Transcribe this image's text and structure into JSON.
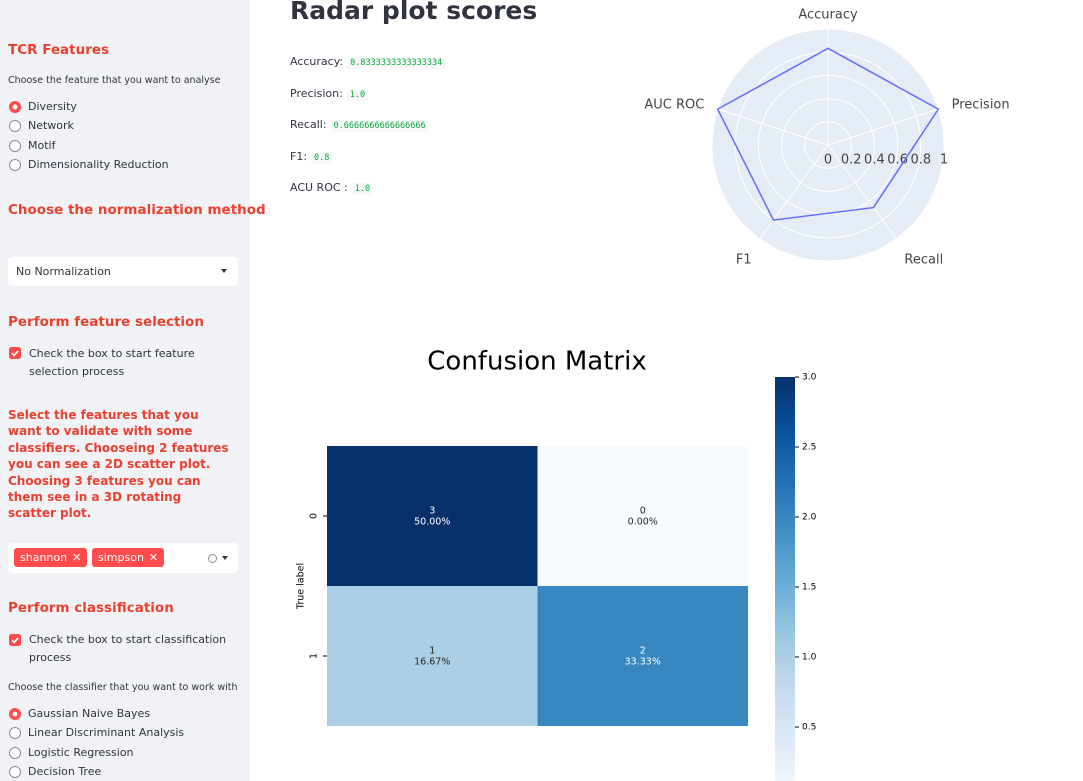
{
  "sidebar": {
    "tcr_title": "TCR Features",
    "feature_prompt": "Choose the feature that you want to analyse",
    "features": [
      "Diversity",
      "Network",
      "Motif",
      "Dimensionality Reduction"
    ],
    "selected_feature": 0,
    "normalization_title": "Choose the normalization method",
    "normalization_value": "No Normalization",
    "feature_selection_title": "Perform feature selection",
    "feature_selection_checkbox": "Check the box to start feature selection process",
    "feature_selection_checked": true,
    "select_features_text": "Select the features that you want to validate with some classifiers. Chooseing 2 features you can see a 2D scatter plot. Choosing 3 features you can them see in a 3D rotating scatter plot.",
    "selected_tags": [
      "shannon",
      "simpson"
    ],
    "classification_title": "Perform classification",
    "classification_checkbox": "Check the box to start classification process",
    "classification_checked": true,
    "classifier_prompt": "Choose the classifier that you want to work with",
    "classifiers": [
      "Gaussian Naive Bayes",
      "Linear Discriminant Analysis",
      "Logistic Regression",
      "Decision Tree"
    ],
    "selected_classifier": 0
  },
  "main": {
    "title": "Radar plot scores",
    "metrics": [
      {
        "label": "Accuracy:",
        "value": "0.8333333333333334"
      },
      {
        "label": "Precision:",
        "value": "1.0"
      },
      {
        "label": "Recall:",
        "value": "0.6666666666666666"
      },
      {
        "label": "F1:",
        "value": "0.8"
      },
      {
        "label": "ACU ROC :",
        "value": "1.0"
      }
    ]
  },
  "chart_data": [
    {
      "type": "radar",
      "categories": [
        "Accuracy",
        "Precision",
        "Recall",
        "F1",
        "AUC ROC"
      ],
      "values": [
        0.8333333333333334,
        1.0,
        0.6666666666666666,
        0.8,
        1.0
      ],
      "color": "#636efa",
      "rlim": [
        0,
        1
      ],
      "rticks": [
        0,
        0.2,
        0.4,
        0.6,
        0.8,
        1
      ]
    },
    {
      "type": "heatmap",
      "title": "Confusion Matrix",
      "ylabel": "True label",
      "rows": [
        "0",
        "1"
      ],
      "values": [
        [
          3,
          0
        ],
        [
          1,
          2
        ]
      ],
      "percent_labels": [
        [
          "50.00%",
          "0.00%"
        ],
        [
          "16.67%",
          "33.33%"
        ]
      ],
      "colormap": "Blues",
      "zlim": [
        0,
        3
      ],
      "zticks": [
        0.5,
        {
          "value": 1,
          "label": "1.0"
        },
        1.5,
        {
          "value": 2,
          "label": "2.0"
        },
        2.5,
        {
          "value": 3,
          "label": "3.0"
        }
      ]
    }
  ]
}
